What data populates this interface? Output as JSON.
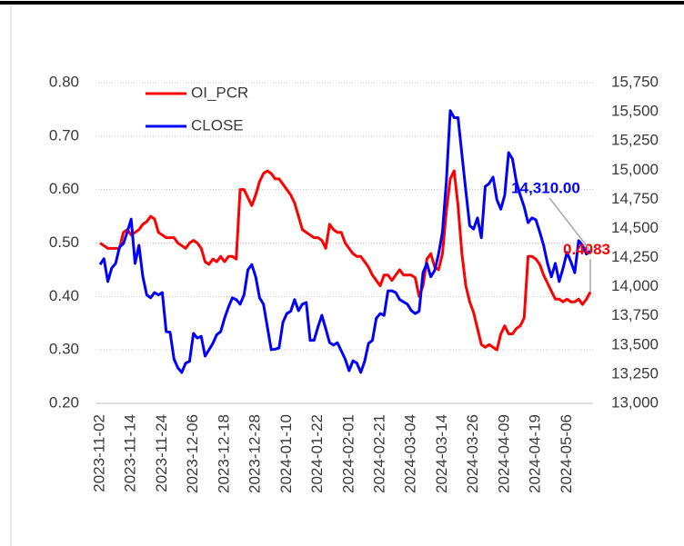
{
  "chart_data": {
    "type": "line",
    "categories": [
      "2023-11-02",
      null,
      null,
      null,
      null,
      null,
      null,
      null,
      "2023-11-14",
      null,
      null,
      null,
      null,
      null,
      null,
      null,
      "2023-11-24",
      null,
      null,
      null,
      null,
      null,
      null,
      null,
      "2023-12-06",
      null,
      null,
      null,
      null,
      null,
      null,
      null,
      "2023-12-18",
      null,
      null,
      null,
      null,
      null,
      null,
      null,
      "2023-12-28",
      null,
      null,
      null,
      null,
      null,
      null,
      null,
      "2024-01-10",
      null,
      null,
      null,
      null,
      null,
      null,
      null,
      "2024-01-22",
      null,
      null,
      null,
      null,
      null,
      null,
      null,
      "2024-02-01",
      null,
      null,
      null,
      null,
      null,
      null,
      null,
      "2024-02-21",
      null,
      null,
      null,
      null,
      null,
      null,
      null,
      "2024-03-04",
      null,
      null,
      null,
      null,
      null,
      null,
      null,
      "2024-03-14",
      null,
      null,
      null,
      null,
      null,
      null,
      null,
      "2024-03-26",
      null,
      null,
      null,
      null,
      null,
      null,
      null,
      "2024-04-09",
      null,
      null,
      null,
      null,
      null,
      null,
      null,
      "2024-04-19",
      null,
      null,
      null,
      null,
      null,
      null,
      null,
      "2024-05-06",
      null,
      null,
      null,
      null,
      null,
      null
    ],
    "series": [
      {
        "name": "OI_PCR",
        "color": "#ff0000",
        "axis": "y",
        "values": [
          0.5,
          0.495,
          0.49,
          0.49,
          0.49,
          0.49,
          0.52,
          0.525,
          0.515,
          0.52,
          0.525,
          0.535,
          0.54,
          0.55,
          0.545,
          0.52,
          0.515,
          0.51,
          0.51,
          0.51,
          0.5,
          0.495,
          0.49,
          0.5,
          0.505,
          0.5,
          0.49,
          0.465,
          0.46,
          0.47,
          0.465,
          0.475,
          0.465,
          0.475,
          0.475,
          0.47,
          0.6,
          0.6,
          0.585,
          0.57,
          0.59,
          0.615,
          0.63,
          0.635,
          0.63,
          0.62,
          0.62,
          0.61,
          0.6,
          0.59,
          0.575,
          0.55,
          0.525,
          0.52,
          0.515,
          0.51,
          0.51,
          0.505,
          0.49,
          0.535,
          0.525,
          0.52,
          0.52,
          0.5,
          0.49,
          0.48,
          0.475,
          0.475,
          0.465,
          0.455,
          0.44,
          0.43,
          0.42,
          0.44,
          0.44,
          0.43,
          0.44,
          0.45,
          0.44,
          0.44,
          0.44,
          0.435,
          0.4,
          0.42,
          0.47,
          0.48,
          0.455,
          0.45,
          0.48,
          0.56,
          0.62,
          0.635,
          0.57,
          0.48,
          0.42,
          0.39,
          0.37,
          0.34,
          0.31,
          0.305,
          0.31,
          0.305,
          0.3,
          0.33,
          0.345,
          0.33,
          0.33,
          0.34,
          0.345,
          0.36,
          0.475,
          0.475,
          0.47,
          0.46,
          0.44,
          0.425,
          0.41,
          0.395,
          0.395,
          0.39,
          0.395,
          0.39,
          0.39,
          0.395,
          0.385,
          0.395,
          0.4083
        ],
        "value_labels": [
          null,
          null,
          null,
          null,
          null,
          null,
          null,
          null,
          null,
          null,
          null,
          null,
          null,
          null,
          null,
          null,
          null,
          null,
          null,
          null,
          null,
          null,
          null,
          null,
          null,
          null,
          null,
          null,
          null,
          null,
          null,
          null,
          null,
          null,
          null,
          null,
          null,
          null,
          null,
          null,
          null,
          null,
          null,
          null,
          null,
          null,
          null,
          null,
          null,
          null,
          null,
          null,
          null,
          null,
          null,
          null,
          null,
          null,
          null,
          null,
          null,
          null,
          null,
          null,
          null,
          null,
          null,
          null,
          null,
          null,
          null,
          null,
          null,
          null,
          null,
          null,
          null,
          null,
          null,
          null,
          null,
          null,
          null,
          null,
          null,
          null,
          null,
          null,
          null,
          null,
          null,
          null,
          null,
          null,
          null,
          null,
          null,
          null,
          null,
          null,
          null,
          null,
          null,
          null,
          null,
          null,
          null,
          null,
          null,
          null,
          null,
          null,
          null,
          null,
          null,
          null,
          null,
          null,
          null,
          null,
          null,
          null,
          null,
          null,
          null,
          null,
          "0.4083"
        ]
      },
      {
        "name": "CLOSE",
        "color": "#0000ff",
        "axis": "y2",
        "values": [
          14190,
          14240,
          14045,
          14160,
          14200,
          14340,
          14370,
          14470,
          14580,
          14200,
          14355,
          14085,
          13930,
          13905,
          13950,
          13930,
          13950,
          13615,
          13610,
          13380,
          13305,
          13265,
          13345,
          13360,
          13600,
          13560,
          13575,
          13405,
          13460,
          13515,
          13590,
          13615,
          13730,
          13825,
          13905,
          13890,
          13850,
          13930,
          14145,
          14190,
          14085,
          13905,
          13850,
          13655,
          13460,
          13465,
          13475,
          13695,
          13770,
          13790,
          13890,
          13795,
          13850,
          13865,
          13540,
          13540,
          13655,
          13755,
          13640,
          13520,
          13500,
          13520,
          13450,
          13380,
          13280,
          13365,
          13345,
          13265,
          13360,
          13515,
          13540,
          13730,
          13770,
          13755,
          13965,
          13965,
          13950,
          13890,
          13870,
          13850,
          13795,
          13770,
          13790,
          14120,
          14200,
          14085,
          14140,
          14280,
          14470,
          14900,
          15510,
          15450,
          15450,
          15135,
          14825,
          14525,
          14495,
          14590,
          14420,
          14860,
          14885,
          14940,
          14745,
          14665,
          14785,
          15150,
          15095,
          14900,
          14785,
          14685,
          14550,
          14590,
          14575,
          14470,
          14355,
          14200,
          14085,
          14200,
          14045,
          14160,
          14295,
          14215,
          14120,
          14395,
          14355,
          14280,
          14310
        ],
        "value_labels": [
          null,
          null,
          null,
          null,
          null,
          null,
          null,
          null,
          null,
          null,
          null,
          null,
          null,
          null,
          null,
          null,
          null,
          null,
          null,
          null,
          null,
          null,
          null,
          null,
          null,
          null,
          null,
          null,
          null,
          null,
          null,
          null,
          null,
          null,
          null,
          null,
          null,
          null,
          null,
          null,
          null,
          null,
          null,
          null,
          null,
          null,
          null,
          null,
          null,
          null,
          null,
          null,
          null,
          null,
          null,
          null,
          null,
          null,
          null,
          null,
          null,
          null,
          null,
          null,
          null,
          null,
          null,
          null,
          null,
          null,
          null,
          null,
          null,
          null,
          null,
          null,
          null,
          null,
          null,
          null,
          null,
          null,
          null,
          null,
          null,
          null,
          null,
          null,
          null,
          null,
          null,
          null,
          null,
          null,
          null,
          null,
          null,
          null,
          null,
          null,
          null,
          null,
          null,
          null,
          null,
          null,
          null,
          null,
          null,
          null,
          null,
          null,
          null,
          null,
          null,
          null,
          null,
          null,
          null,
          null,
          null,
          null,
          null,
          null,
          null,
          null,
          "14,310.00"
        ]
      }
    ],
    "ylim": [
      0.2,
      0.8
    ],
    "yticks": [
      {
        "value": 0.2,
        "label": "0.20"
      },
      {
        "value": 0.3,
        "label": "0.30"
      },
      {
        "value": 0.4,
        "label": "0.40"
      },
      {
        "value": 0.5,
        "label": "0.50"
      },
      {
        "value": 0.6,
        "label": "0.60"
      },
      {
        "value": 0.7,
        "label": "0.70"
      },
      {
        "value": 0.8,
        "label": "0.80"
      }
    ],
    "y2lim": [
      13000,
      15750
    ],
    "y2ticks": [
      {
        "value": 13000,
        "label": "13,000"
      },
      {
        "value": 13250,
        "label": "13,250"
      },
      {
        "value": 13500,
        "label": "13,500"
      },
      {
        "value": 13750,
        "label": "13,750"
      },
      {
        "value": 14000,
        "label": "14,000"
      },
      {
        "value": 14250,
        "label": "14,250"
      },
      {
        "value": 14500,
        "label": "14,500"
      },
      {
        "value": 14750,
        "label": "14,750"
      },
      {
        "value": 15000,
        "label": "15,000"
      },
      {
        "value": 15250,
        "label": "15,250"
      },
      {
        "value": 15500,
        "label": "15,500"
      },
      {
        "value": 15750,
        "label": "15,750"
      }
    ],
    "grid": true,
    "legend": "top-left"
  }
}
